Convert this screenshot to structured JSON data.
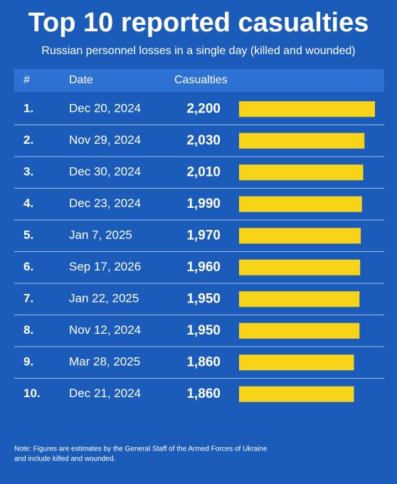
{
  "chart_data": {
    "type": "bar",
    "title": "Top 10 reported casualties",
    "subtitle": "Russian personnel losses in a single day (killed and wounded)",
    "columns": [
      "#",
      "Date",
      "Casualties"
    ],
    "ranks": [
      "1.",
      "2.",
      "3.",
      "4.",
      "5.",
      "6.",
      "7.",
      "8.",
      "9.",
      "10."
    ],
    "categories": [
      "Dec 20, 2024",
      "Nov 29, 2024",
      "Dec 30, 2024",
      "Dec 23, 2024",
      "Jan 7, 2025",
      "Sep 17, 2026",
      "Jan 22, 2025",
      "Nov 12, 2024",
      "Mar 28, 2025",
      "Dec 21, 2024"
    ],
    "values": [
      2200,
      2030,
      2010,
      1990,
      1970,
      1960,
      1950,
      1950,
      1860,
      1860
    ],
    "value_labels": [
      "2,200",
      "2,030",
      "2,010",
      "1,990",
      "1,970",
      "1,960",
      "1,950",
      "1,950",
      "1,860",
      "1,860"
    ],
    "color": "#f7d417",
    "label_colors": [
      "#ffffff",
      "#ffffff",
      "#ffffff",
      "#ffffff",
      "#ffffff",
      "#f7d417",
      "#ffffff",
      "#ffffff",
      "#ffffff",
      "#ffffff"
    ],
    "note": [
      "Note: Figures are estimates by the General Staff of the Armed Forces of Ukraine",
      "and include killed and wounded."
    ]
  }
}
